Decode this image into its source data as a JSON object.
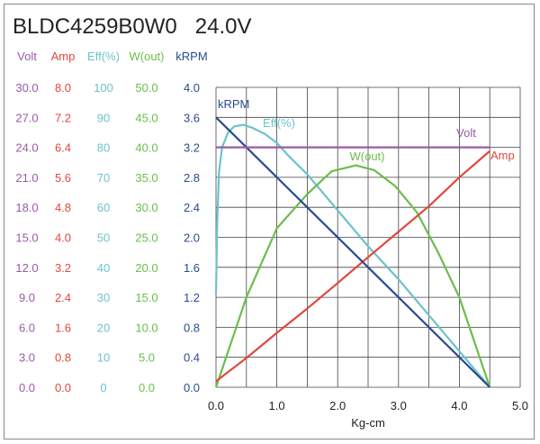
{
  "chart_data": {
    "type": "line",
    "title": "BLDC4259B0W0   24.0V",
    "xlabel": "Kg-cm",
    "xlim": [
      0,
      5.0
    ],
    "x_ticks": [
      "0.0",
      "1.0",
      "2.0",
      "3.0",
      "4.0",
      "5.0"
    ],
    "grid": true,
    "axes": [
      {
        "name": "Volt",
        "color": "#9b5aa6",
        "max": 30.0,
        "ticks": [
          "0.0",
          "3.0",
          "6.0",
          "9.0",
          "12.0",
          "15.0",
          "18.0",
          "21.0",
          "24.0",
          "27.0",
          "30.0"
        ]
      },
      {
        "name": "Amp",
        "color": "#e0483c",
        "max": 8.0,
        "ticks": [
          "0.0",
          "0.8",
          "1.6",
          "2.4",
          "3.2",
          "4.0",
          "4.8",
          "5.6",
          "6.4",
          "7.2",
          "8.0"
        ]
      },
      {
        "name": "Eff(%)",
        "color": "#6cc3cb",
        "max": 100,
        "ticks": [
          "0",
          "10",
          "20",
          "30",
          "40",
          "50",
          "60",
          "70",
          "80",
          "90",
          "100"
        ]
      },
      {
        "name": "W(out)",
        "color": "#6cbd4c",
        "max": 50.0,
        "ticks": [
          "0.0",
          "5.0",
          "10.0",
          "15.0",
          "20.0",
          "25.0",
          "30.0",
          "35.0",
          "40.0",
          "45.0",
          "50.0"
        ]
      },
      {
        "name": "kRPM",
        "color": "#2c4a90",
        "max": 4.0,
        "ticks": [
          "0.0",
          "0.4",
          "0.8",
          "1.2",
          "1.6",
          "2.0",
          "2.4",
          "2.8",
          "3.2",
          "3.6",
          "4.0"
        ]
      }
    ],
    "series": [
      {
        "name": "Volt",
        "axis": 0,
        "label": "Volt",
        "x": [
          0,
          4.5
        ],
        "y": [
          24.0,
          24.0
        ]
      },
      {
        "name": "Amp",
        "axis": 1,
        "label": "Amp",
        "x": [
          0,
          0.5,
          1.0,
          1.5,
          2.0,
          2.5,
          3.0,
          3.5,
          4.0,
          4.5
        ],
        "y": [
          0.16,
          0.78,
          1.45,
          2.1,
          2.78,
          3.47,
          4.15,
          4.83,
          5.6,
          6.3
        ]
      },
      {
        "name": "Eff(%)",
        "axis": 2,
        "label": "Eff(%)",
        "x": [
          0,
          0.02,
          0.05,
          0.1,
          0.2,
          0.3,
          0.45,
          0.6,
          0.8,
          1.0,
          1.2,
          1.5,
          2.0,
          2.5,
          3.0,
          3.5,
          4.0,
          4.5
        ],
        "y": [
          31,
          55,
          72,
          80,
          85,
          87,
          87.5,
          86.5,
          84.5,
          81.5,
          77,
          71,
          59,
          47,
          36,
          24,
          12,
          0
        ]
      },
      {
        "name": "W(out)",
        "axis": 3,
        "label": "W(out)",
        "x": [
          0,
          0.25,
          0.5,
          1.0,
          1.5,
          1.9,
          2.3,
          2.6,
          2.95,
          3.3,
          3.65,
          4.0,
          4.5
        ],
        "y": [
          0,
          7.5,
          15,
          26.5,
          32.2,
          36,
          37,
          36.2,
          33.5,
          29.2,
          22.5,
          15,
          0
        ]
      },
      {
        "name": "kRPM",
        "axis": 4,
        "label": "kRPM",
        "x": [
          0,
          4.5
        ],
        "y": [
          3.6,
          0
        ]
      }
    ]
  }
}
